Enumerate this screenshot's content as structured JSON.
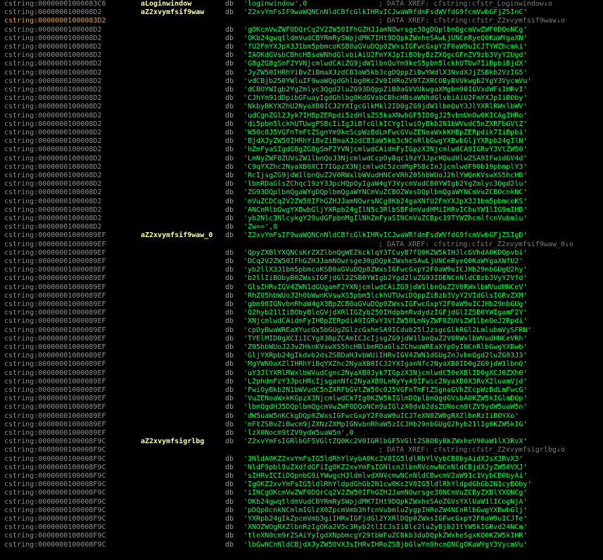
{
  "lines": [
    {
      "addr": "cstring:00000001000083C6",
      "label": "aLoginwindow",
      "db": "db",
      "value": "'loginwindow',0",
      "comment": "; DATA XREF: cfstring:cfstr_Loginwindow↓o"
    },
    {
      "addr": "cstring:0000000100008D2",
      "label": "aZ2xvymfsif9waw",
      "db": "db",
      "value": "'Z2xvYmFsIF9waWQNCnNldCBfcGlkIHRvICJwaWRfdmFsdWVfdG9fcmVwbGFjZSInC'",
      "comment": ""
    },
    {
      "addr": "cstring:00000001000083D2",
      "label": "",
      "db": "",
      "value": "",
      "comment": "; DATA XREF: cfstring:cfstr_Z2xvymfsif9waw↓o"
    },
    {
      "addr": "cstring:0000000100008D2",
      "label": "",
      "db": "db",
      "value": "'gOKcmVwZWF0DQrCq2V2ZW50IFhGZHJJamNOwrsge30gDQplbmQgcmVwZWF0DQoNCg'",
      "comment": ""
    },
    {
      "addr": "cstring:0000000100008D2",
      "label": "",
      "db": "db",
      "value": "'OKb24gwqtldmVudCBYRmRySWpjdMK7IHt9DQpkZWxheSAwLjUNCnRyeQ0KaWYgaXN'",
      "comment": ""
    },
    {
      "addr": "cstring:0000000100008D2",
      "label": "",
      "db": "db",
      "value": "'fU2FmYXJpX3J1bm5pbmcoKSB0aGVuDQp0ZWxsIGFwcGxpY2F0aW9uICJTYWZhcmki'",
      "comment": ""
    },
    {
      "addr": "cstring:0000000100008D2",
      "label": "",
      "db": "db",
      "value": "'IAOKdGVsbCBhcHBsaWNhdGlvbiAiU2FmYXJpIiBObyBzZXQgcGFnZV9zb3VyY2Ugd'",
      "comment": ""
    },
    {
      "addr": "cstring:0000000100008D2",
      "label": "",
      "db": "db",
      "value": "'G8gZG8gSmF2YVNjcmlwdCAiZG9jdW1lbnQuYm9keS5pbm5lckhUTUw7IiBpbiBjdX'",
      "comment": ""
    },
    {
      "addr": "cstring:0000000100008D2",
      "label": "",
      "db": "db",
      "value": "'JyZW50IHRhYiBvZiBmaXJzdCB3aW5kb3cgDQppZiBwYWdlX3NvdXJjZSBkb2VzIG5'",
      "comment": ""
    },
    {
      "addr": "cstring:0000000100008D2",
      "label": "",
      "db": "db",
      "value": "'vdCBjb250YWluIF9waWQgdGhlbg0Kc2V0IHRoZV9TZXRCOByBVUkwgb2YgY3VycmVu'",
      "comment": ""
    },
    {
      "addr": "cstring:0000000100008D2",
      "label": "",
      "db": "db",
      "value": "'dCBOYWIgb2YgZmlyc3Qgd2luZG93DQppZiB0aGVVUkwgaXMgbm90IGVxdWFsIHRvI'",
      "comment": ""
    },
    {
      "addr": "cstring:0000000100008D2",
      "label": "",
      "db": "db",
      "value": "'CJhYm91dDpibGFuayIgdGhlbg0KdGVsbCBhcHBsaWNhdGlvbiAiU2FmYXJpIiBOby'",
      "comment": ""
    },
    {
      "addr": "cstring:0000000100008D2",
      "label": "",
      "db": "db",
      "value": "'NkbyBKYXZhU2NyaXB0ICJ2YXIgcGlkMkl2ID0gZG9jdW1lbnQuY3JlYXRlRWxlbWV'",
      "comment": ""
    },
    {
      "addr": "cstring:0000000100008D2",
      "label": "",
      "db": "db",
      "value": "'udCgnZGl2Jyk7IHBpZERpdi5zdHlsZS5kaXNwbGF5ID0gJ25vbmUnOw0KICAgIHRo'",
      "comment": ""
    },
    {
      "addr": "cstring:0000000100008D2",
      "label": "",
      "db": "db",
      "value": "'di5pbm5lckhUTUwgPSBcIiIgJiBfcGlkICYgIlwiOyBkb2N1bWVudC5nZXRFbGVtZ'",
      "comment": ""
    },
    {
      "addr": "cstring:0000000100008D2",
      "label": "",
      "db": "db",
      "value": "'W50c0J5VGFnTmFtZSgnYm9keScpWzBdLmFwcGVuZENoaWxkKHBpZERpdik7IiBpbi'",
      "comment": ""
    },
    {
      "addr": "cstring:0000000100008D2",
      "label": "",
      "db": "db",
      "value": "'BjdXJyZW50IHRhYiBvZiBmaXJzdCB3aW5kb3cNCnRlbGwgYXBwbGljYXRpb24gIlN'",
      "comment": ""
    },
    {
      "addr": "cstring:0000000100008D2",
      "label": "",
      "db": "db",
      "value": "'hZmFyaSIgdG8gZG8gSmF2YVNjcmlwdCAidmFyIGpzX3NjcmlwdCA9IGRvY3VtZW50'",
      "comment": ""
    },
    {
      "addr": "cstring:0000000100008D2",
      "label": "",
      "db": "db",
      "value": "'LmNyZWF0ZUVsZW1lbnQoJ3NjcmlwdCcpOyBqc19zY3JpcHQudHlwZSA9IFwidGV4d'",
      "comment": ""
    },
    {
      "addr": "cstring:0000000100008D2",
      "label": "",
      "db": "db",
      "value": "'C9qYXZhc2NyaXB0XCI7IGpzX3NjcmlwdC5zcmMgPSBcInJjcmlwdF90b19pbmplY3'",
      "comment": ""
    },
    {
      "addr": "cstring:0000000100008D2",
      "label": "",
      "db": "db",
      "value": "'RcIjsgZG9jdW1lbnQuZ2V0RWxlbWVudHNCeVRhZ05hbWUoJ2hlYWQnKVswXS5hcHB'",
      "comment": ""
    },
    {
      "addr": "cstring:0000000100008D2",
      "label": "",
      "db": "db",
      "value": "'lbmRDaGlsZChqc19zY3JpcHQpOyIgaW4gY3VycmVudCB0YWIgb2YgZmlyc3Qgd2lu'",
      "comment": ""
    },
    {
      "addr": "cstring:0000000100008D2",
      "label": "",
      "db": "db",
      "value": "'ZG93DQplbmQgaWYgDQplbmQgaWYNCmVuZCBOZWxsDQplbmQgaWYNCmVuZCBOcnkNC'",
      "comment": ""
    },
    {
      "addr": "cstring:0000000100008D2",
      "label": "",
      "db": "db",
      "value": "'mVuZCDCq2V2ZW50IFhGZHJJamNOwrsNCg0Kb24gaXNfU2FmYXJpX3J1bm5pbmcoKS'",
      "comment": ""
    },
    {
      "addr": "cstring:0000000100008D2",
      "label": "",
      "db": "db",
      "value": "'ANCnRlbGwgYXBwbGljYXRpb24gIlN5c3RlbSBFdmVudHMiIHRvIChuYW1lIG9mIHB'",
      "comment": ""
    },
    {
      "addr": "cstring:0000000100008D2",
      "label": "",
      "db": "db",
      "value": "'yb2Nlc3NlcykgY29udGFpbnMgIlNhZmFyaSINCmVuZCBpc19TYWZhcmlfcnVubmlu'",
      "comment": ""
    },
    {
      "addr": "cstring:0000000100008D2",
      "label": "",
      "db": "db",
      "value": "'Zw==',0",
      "comment": ""
    },
    {
      "addr": "cstring:00000001000089EF",
      "label": "aZ2xvymfsif9waw_0",
      "db": "db",
      "value": "'Z2xvYmFsIF9waWQNCnNldCBfcGlkIHRvICJwaWRfdmFsdWVfdG9fcmVwbGFjZSIgD'",
      "comment": ""
    },
    {
      "addr": "cstring:00000001000089EF",
      "label": "",
      "db": "",
      "value": "",
      "comment": "; DATA XREF: cfstring:cfstr_Z2xvymfsif9waw_0↓o"
    },
    {
      "addr": "cstring:00000001000089EF",
      "label": "",
      "db": "db",
      "value": "'QpyZXBlYXQNCsKrZXZlbnQgWEZkcklqY3TCuyB7fQ0KZW5kIHJlcGVhdA0KDQpvbi'",
      "comment": ""
    },
    {
      "addr": "cstring:00000001000089EF",
      "label": "",
      "db": "db",
      "value": "'DCq2V2ZW50IFhGZHJJamNOwrsge30gDQpkZWxheSAwLjUNCnRyeQ0KaWYgaXNfU2'",
      "comment": ""
    },
    {
      "addr": "cstring:00000001000089EF",
      "label": "",
      "db": "db",
      "value": "'yb2llX3J1bm5pbmcoKSB0aGVuDQp0ZWxsIGFwcGxpY2F0aW9uICJHb29nbGUgQ2hy'",
      "comment": ""
    },
    {
      "addr": "cstring:00000001000089EF",
      "label": "",
      "db": "db",
      "value": "'b2llIiBObyB0ZWxsIGFjdGl2ZSB0YWIgb2Ygd2luZG93IDENCnNldCBzb3VyY2Vfd'",
      "comment": ""
    },
    {
      "addr": "cstring:00000001000089EF",
      "label": "",
      "db": "db",
      "value": "'GlsIHRvIGV4ZWN1dGUgamF2YXNjcmlwdCAiZG9jdW1lbnQuZ2V0RWxlbWVudHNCeV'",
      "comment": ""
    },
    {
      "addr": "cstring:00000001000089EF",
      "label": "",
      "db": "db",
      "value": "'RhZ05hbWUoJ2h0bWwnKVswXS5pbm5lckhUTUwiDQppZiBzb3VyY2VIdGlsIGRvZXM'",
      "comment": ""
    },
    {
      "addr": "cstring:00000001000089EF",
      "label": "",
      "db": "db",
      "value": "'gbm90IGNvbnRhaW4gX3BpZCB0aGVuDQp0ZWxsIGFwcGxpY2F0aW9uICJHb29nbGUg'",
      "comment": ""
    },
    {
      "addr": "cstring:00000001000089EF",
      "label": "",
      "db": "db",
      "value": "'Q2hyb21lIiBObyBleGVjdXRlIGZyb250IHdpbmRvdydzIGFjdGl2ZSB0YWIgamF2Y'",
      "comment": ""
    },
    {
      "addr": "cstring:00000001000089EF",
      "label": "",
      "db": "db",
      "value": "'XNjcmlwdCAidmFyIHBpZERpdiA9IGRvY3VtZW50LmNyZWF0ZUVsZW1lbnQoJ2Rpdi'",
      "comment": ""
    },
    {
      "addr": "cstring:00000001000089EF",
      "label": "",
      "db": "db",
      "value": "'cpOyBwaWREaXYucGx5bGUgZGlzcGxheSA9ICdub25lJzsgcGlkRGl2LmlubmVySFRN'",
      "comment": ""
    },
    {
      "addr": "cstring:00000001000089EF",
      "label": "",
      "db": "db",
      "value": "'TYElMID0gXCIiICYgX3BpZCAmICJcIjsgZG9jdW1lbnQuZ2V0RWxlbWVudHNCeVRh'",
      "comment": ""
    },
    {
      "addr": "cstring:00000001000089EF",
      "label": "",
      "db": "db",
      "value": "'Z05hbWUoJ2JvZHknKVswXS5hcHBlbmRDaGlsZChwaWREaXYpOyINCnRlbGwgYXBwb'",
      "comment": ""
    },
    {
      "addr": "cstring:00000001000089EF",
      "label": "",
      "db": "db",
      "value": "'GljYXRpb24gIkdvb2dsZSBDaHJvbWUiIHRvIGV4ZWN1dGUgZnJvbnQgd2luZG93J3'",
      "comment": ""
    },
    {
      "addr": "cstring:00000001000089EF",
      "label": "",
      "db": "db",
      "value": "'MgYWN0aXZlIHRhYiBqYXZhc2NyaXB0ICJ2YXIganNfc2NyaXB0ID0gZG9jdW1lbnQ'",
      "comment": ""
    },
    {
      "addr": "cstring:00000001000089EF",
      "label": "",
      "db": "db",
      "value": "'uY3JlYXRlRWxlbWVudCgnc2NyaXB0Jyk7IGpzX3NjcmlwdC50eXBlID0gXCJ0ZXh0'",
      "comment": ""
    },
    {
      "addr": "cstring:00000001000089EF",
      "label": "",
      "db": "db",
      "value": "'L2phdmFzY3JpcHRcIjsganNfc2NyaXB0LnNyYyA9IFwic2NyaXB0X3RvX2luamVjd'",
      "comment": ""
    },
    {
      "addr": "cstring:00000001000089EF",
      "label": "",
      "db": "db",
      "value": "'FwiOyBkb2N1bWVudC5nZXRFbGVtZW50c0J5VGFnTmFtZSgnaGVhZCcpWzBdLmFwcG'",
      "comment": ""
    },
    {
      "addr": "cstring:00000001000089EF",
      "label": "",
      "db": "db",
      "value": "'VuZENoaWxkKGpzX3NjcmlwdCk7Ig0KZW5kIGlmDQplbmQgdGVsbA0KZW5kIGlmDQp'",
      "comment": ""
    },
    {
      "addr": "cstring:00000001000089EF",
      "label": "",
      "db": "db",
      "value": "'lbmQgdHJ5DQplbmQgcmVwZWF0DQoNCm9uIGlzX0dvb2dsZUNocm9tZV9ydW5uaW5n'",
      "comment": ""
    },
    {
      "addr": "cstring:00000001000089EF",
      "label": "",
      "db": "db",
      "value": "'dW5uaW5nKCkgDQp0ZWxsIGFwcGxpY2F0aW9uICJTeXN0ZW0gRXZlbnRzIiBOYXo'",
      "comment": ""
    },
    {
      "addr": "cstring:00000001000089EF",
      "label": "",
      "db": "db",
      "value": "'mFtZSBvZiBwcm9jZXNzZXMpIGNvbnRhaW5zICJHb29nbGUgQ2hyb21lIg0KZW5kIG'",
      "comment": ""
    },
    {
      "addr": "cstring:00000001000089EF",
      "label": "",
      "db": "db",
      "value": "'lzX0Nocm9tZV9ydW5uaW5n',0",
      "comment": ""
    },
    {
      "addr": "cstring:0000000100008F9C",
      "label": "aZ2xvymfsigrlbg",
      "db": "db",
      "value": "'Z2xvYmFsIGRlbGF5VGltZQ0Kc2V0IGRlbGF5VGltZSBOByBkZWxheV90aW1lX3RvX'",
      "comment": ""
    },
    {
      "addr": "cstring:0000000100008F9C",
      "label": "",
      "db": "",
      "value": "",
      "comment": "; DATA XREF: cfstring:cfstr_Z2xvymfsigrlbg↓o"
    },
    {
      "addr": "cstring:0000000100008F9C",
      "label": "",
      "db": "db",
      "value": "'3NldA0KZ2xvYmFsIG5ldRhYlVybA0Kc2V0IG5ldlRhYlVybCB0byAidXJsX3RvX3'",
      "comment": ""
    },
    {
      "addr": "cstring:0000000100008F9C",
      "label": "",
      "db": "db",
      "value": "'NldF9pbl9uZXdfdGFiIg0KZ2xvYmFsIGNlcnJlbnRVcmwNCnNldCBjdXJyZW50VXJ'",
      "comment": ""
    },
    {
      "addr": "cstring:0000000100008F9C",
      "label": "",
      "db": "db",
      "value": "'sIHRvICIiDQpnbG9iYWwgcHJldmlvdXNVcmwNCnNldCBwcmV2aW91c1VybCB0byAi'",
      "comment": ""
    },
    {
      "addr": "cstring:0000000100008F9C",
      "label": "",
      "db": "db",
      "value": "'IgOKZ2xvYmFsIG5ldlRhYldpdGhGb2N1cw0Kc2V0IG5ldlRhYldpdGhGb2N1cyBOby'",
      "comment": ""
    },
    {
      "addr": "cstring:0000000100008F9C",
      "label": "",
      "db": "db",
      "value": "'iINCgOKcmVwZWF0DQrCq2V2ZW50IFhGZHJJamNOwrsge30NCmVuZCByZXBlYXQNCg'",
      "comment": ""
    },
    {
      "addr": "cstring:0000000100008F9C",
      "label": "",
      "db": "db",
      "value": "'OKb24gwqtldmVudCBYRmRySWpjdMK7IHt9DQpkZWxheSAoZGVsYXlUaW1lICogNjA'",
      "comment": ""
    },
    {
      "addr": "cstring:0000000100008F9C",
      "label": "",
      "db": "db",
      "value": "'pDQp0cnkNCmlmIGlzX0ZpcmVmb3hfcnVubmluZygpIHRoZW4NCnRlbGwgYXBwbGlj'",
      "comment": ""
    },
    {
      "addr": "cstring:0000000100008F9C",
      "label": "",
      "db": "db",
      "value": "'YXRpb24gIkZpcmVmb3giIHRvIGFjdGl2YXRlDQp0ZWxsIGFwcGxpY2F0aW9uICJTe'",
      "comment": ""
    },
    {
      "addr": "cstring:0000000100008F9C",
      "label": "",
      "db": "db",
      "value": "'XNOZWOgRXZlbnRzIgOKa2V5c3Ryb2tlICJsIiBlc2luZyBjb21tYW5kIGRvd24NCm'",
      "comment": ""
    },
    {
      "addr": "cstring:0000000100008F9C",
      "label": "",
      "db": "db",
      "value": "'tleXN0cm9rZSAiYyIgdXNpbmcgY29tbWFuZCBkb3duDQpkZWxheSgxKQ0KZW5kIHR'",
      "comment": ""
    },
    {
      "addr": "cstring:0000000100008F9C",
      "label": "",
      "db": "db",
      "value": "'lbGwNCnNldCBjdXJyZW50VXJsIHRvIHRoZSBjbGlwYm9hcmQNCgOKaWYgY3VycmVu'",
      "comment": ""
    }
  ]
}
